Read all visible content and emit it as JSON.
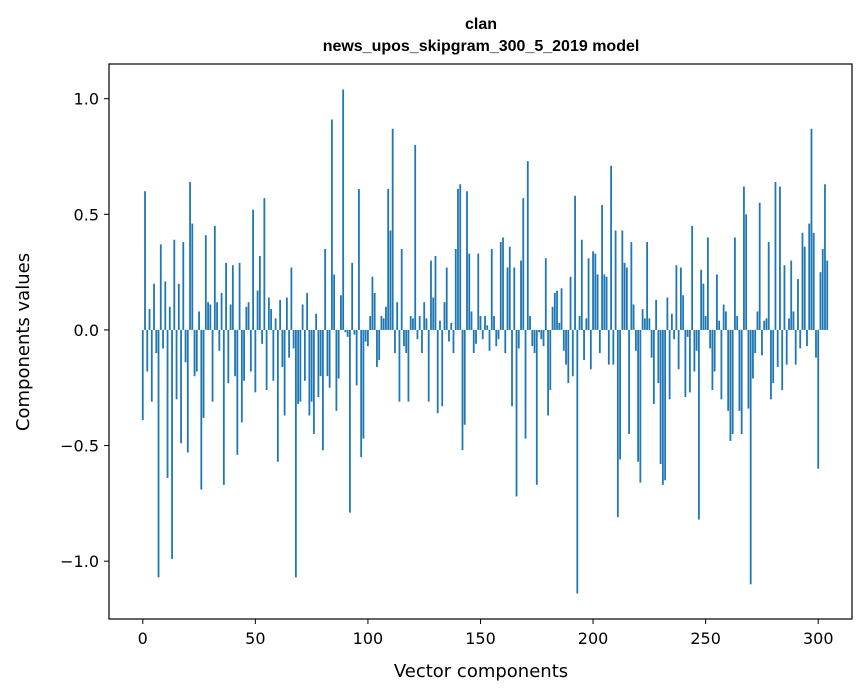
{
  "chart_data": {
    "type": "bar",
    "title_line1": "clan",
    "title_line2": "news_upos_skipgram_300_5_2019 model",
    "xlabel": "Vector components",
    "ylabel": "Components values",
    "xlim": [
      -15,
      315
    ],
    "ylim": [
      -1.25,
      1.15
    ],
    "xticks": [
      0,
      50,
      100,
      150,
      200,
      250,
      300
    ],
    "xtick_labels": [
      "0",
      "50",
      "100",
      "150",
      "200",
      "250",
      "300"
    ],
    "yticks": [
      -1.0,
      -0.5,
      0.0,
      0.5,
      1.0
    ],
    "ytick_labels": [
      "−1.0",
      "−0.5",
      "0.0",
      "0.5",
      "1.0"
    ],
    "bar_color": "#1f77b4",
    "values": [
      -0.39,
      0.6,
      -0.18,
      0.09,
      -0.31,
      0.2,
      -0.1,
      -1.07,
      0.37,
      -0.08,
      0.21,
      -0.64,
      0.1,
      -0.99,
      0.39,
      -0.3,
      0.2,
      -0.49,
      0.38,
      -0.14,
      -0.53,
      0.64,
      0.46,
      -0.2,
      -0.18,
      0.08,
      -0.69,
      -0.38,
      0.41,
      0.12,
      0.11,
      -0.31,
      0.45,
      0.12,
      -0.09,
      0.16,
      -0.67,
      0.29,
      -0.23,
      0.11,
      0.28,
      -0.2,
      -0.54,
      0.29,
      -0.4,
      -0.22,
      0.1,
      0.12,
      -0.18,
      0.52,
      -0.27,
      0.17,
      0.32,
      -0.06,
      0.57,
      -0.26,
      0.14,
      0.09,
      -0.22,
      0.05,
      -0.57,
      0.13,
      -0.16,
      -0.37,
      0.14,
      -0.12,
      0.27,
      -0.08,
      -1.07,
      -0.32,
      -0.31,
      0.11,
      -0.22,
      0.16,
      -0.37,
      -0.31,
      -0.45,
      0.07,
      -0.29,
      -0.2,
      -0.52,
      0.35,
      -0.2,
      -0.25,
      0.91,
      0.24,
      -0.35,
      -0.21,
      0.15,
      1.04,
      -0.01,
      -0.03,
      -0.79,
      0.29,
      -0.02,
      -0.24,
      0.61,
      -0.55,
      -0.47,
      -0.05,
      -0.07,
      0.06,
      0.23,
      0.16,
      -0.16,
      -0.13,
      0.06,
      0.05,
      0.1,
      0.61,
      0.43,
      0.87,
      -0.1,
      0.12,
      -0.31,
      0.35,
      -0.07,
      -0.1,
      -0.31,
      0.06,
      0.05,
      0.8,
      -0.04,
      0.06,
      -0.1,
      0.12,
      0.05,
      -0.31,
      0.3,
      0.14,
      0.32,
      -0.36,
      0.04,
      -0.33,
      0.12,
      0.27,
      -0.05,
      0.03,
      -0.1,
      0.35,
      0.61,
      0.63,
      -0.52,
      -0.41,
      0.6,
      0.33,
      0.08,
      -0.1,
      -0.06,
      0.33,
      0.06,
      -0.04,
      0.06,
      0.02,
      -0.09,
      0.35,
      0.06,
      -0.07,
      -0.04,
      0.38,
      0.4,
      -0.1,
      0.27,
      0.36,
      -0.33,
      0.27,
      -0.72,
      -0.08,
      0.3,
      0.57,
      -0.47,
      0.73,
      0.06,
      -0.07,
      -0.1,
      -0.67,
      -0.01,
      -0.04,
      -0.07,
      0.31,
      -0.37,
      -0.26,
      0.1,
      0.16,
      0.17,
      0.03,
      0.18,
      -0.09,
      -0.15,
      -0.23,
      0.23,
      -0.2,
      0.58,
      -1.14,
      0.06,
      0.39,
      -0.13,
      0.05,
      0.31,
      -0.17,
      0.34,
      0.33,
      0.24,
      -0.1,
      0.54,
      0.24,
      0.23,
      -0.15,
      0.71,
      -0.15,
      0.43,
      -0.81,
      -0.56,
      0.43,
      0.29,
      0.27,
      -0.45,
      0.38,
      0.11,
      -0.09,
      -0.57,
      -0.66,
      0.09,
      0.05,
      0.38,
      0.05,
      -0.12,
      -0.32,
      0.13,
      -0.23,
      -0.58,
      -0.67,
      -0.65,
      0.14,
      -0.3,
      0.07,
      -0.04,
      0.28,
      -0.17,
      0.27,
      0.15,
      -0.29,
      -0.03,
      -0.27,
      0.45,
      -0.18,
      -0.09,
      -0.82,
      0.26,
      0.2,
      0.06,
      0.4,
      -0.08,
      -0.26,
      -0.18,
      0.24,
      0.04,
      -0.3,
      0.11,
      0.08,
      -0.35,
      -0.48,
      -0.45,
      0.4,
      0.06,
      -0.35,
      -0.45,
      0.62,
      0.5,
      -0.34,
      -1.1,
      -0.21,
      -0.1,
      0.08,
      0.55,
      -0.11,
      0.04,
      0.05,
      0.38,
      -0.3,
      -0.23,
      0.64,
      -0.16,
      0.62,
      -0.26,
      0.28,
      -0.15,
      0.05,
      0.3,
      0.08,
      -0.15,
      0.22,
      -0.08,
      0.42,
      0.36,
      -0.07,
      0.46,
      0.87,
      0.42,
      -0.12,
      -0.6,
      0.25,
      0.35,
      0.63,
      0.3
    ]
  }
}
